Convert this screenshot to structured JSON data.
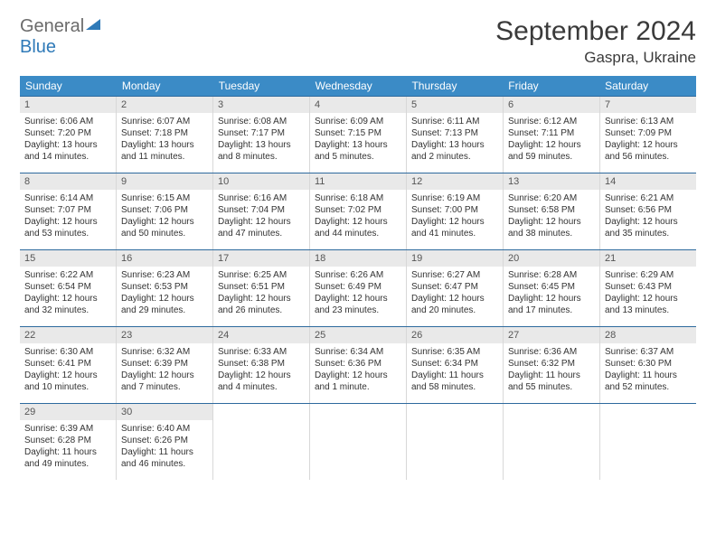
{
  "brand": {
    "part1": "General",
    "part2": "Blue"
  },
  "title": "September 2024",
  "location": "Gaspra, Ukraine",
  "header_bg": "#3b8bc6",
  "row_divider": "#2e6a9e",
  "daynum_bg": "#e9e9e9",
  "dow": [
    "Sunday",
    "Monday",
    "Tuesday",
    "Wednesday",
    "Thursday",
    "Friday",
    "Saturday"
  ],
  "weeks": [
    [
      {
        "n": "1",
        "sr": "Sunrise: 6:06 AM",
        "ss": "Sunset: 7:20 PM",
        "d1": "Daylight: 13 hours",
        "d2": "and 14 minutes."
      },
      {
        "n": "2",
        "sr": "Sunrise: 6:07 AM",
        "ss": "Sunset: 7:18 PM",
        "d1": "Daylight: 13 hours",
        "d2": "and 11 minutes."
      },
      {
        "n": "3",
        "sr": "Sunrise: 6:08 AM",
        "ss": "Sunset: 7:17 PM",
        "d1": "Daylight: 13 hours",
        "d2": "and 8 minutes."
      },
      {
        "n": "4",
        "sr": "Sunrise: 6:09 AM",
        "ss": "Sunset: 7:15 PM",
        "d1": "Daylight: 13 hours",
        "d2": "and 5 minutes."
      },
      {
        "n": "5",
        "sr": "Sunrise: 6:11 AM",
        "ss": "Sunset: 7:13 PM",
        "d1": "Daylight: 13 hours",
        "d2": "and 2 minutes."
      },
      {
        "n": "6",
        "sr": "Sunrise: 6:12 AM",
        "ss": "Sunset: 7:11 PM",
        "d1": "Daylight: 12 hours",
        "d2": "and 59 minutes."
      },
      {
        "n": "7",
        "sr": "Sunrise: 6:13 AM",
        "ss": "Sunset: 7:09 PM",
        "d1": "Daylight: 12 hours",
        "d2": "and 56 minutes."
      }
    ],
    [
      {
        "n": "8",
        "sr": "Sunrise: 6:14 AM",
        "ss": "Sunset: 7:07 PM",
        "d1": "Daylight: 12 hours",
        "d2": "and 53 minutes."
      },
      {
        "n": "9",
        "sr": "Sunrise: 6:15 AM",
        "ss": "Sunset: 7:06 PM",
        "d1": "Daylight: 12 hours",
        "d2": "and 50 minutes."
      },
      {
        "n": "10",
        "sr": "Sunrise: 6:16 AM",
        "ss": "Sunset: 7:04 PM",
        "d1": "Daylight: 12 hours",
        "d2": "and 47 minutes."
      },
      {
        "n": "11",
        "sr": "Sunrise: 6:18 AM",
        "ss": "Sunset: 7:02 PM",
        "d1": "Daylight: 12 hours",
        "d2": "and 44 minutes."
      },
      {
        "n": "12",
        "sr": "Sunrise: 6:19 AM",
        "ss": "Sunset: 7:00 PM",
        "d1": "Daylight: 12 hours",
        "d2": "and 41 minutes."
      },
      {
        "n": "13",
        "sr": "Sunrise: 6:20 AM",
        "ss": "Sunset: 6:58 PM",
        "d1": "Daylight: 12 hours",
        "d2": "and 38 minutes."
      },
      {
        "n": "14",
        "sr": "Sunrise: 6:21 AM",
        "ss": "Sunset: 6:56 PM",
        "d1": "Daylight: 12 hours",
        "d2": "and 35 minutes."
      }
    ],
    [
      {
        "n": "15",
        "sr": "Sunrise: 6:22 AM",
        "ss": "Sunset: 6:54 PM",
        "d1": "Daylight: 12 hours",
        "d2": "and 32 minutes."
      },
      {
        "n": "16",
        "sr": "Sunrise: 6:23 AM",
        "ss": "Sunset: 6:53 PM",
        "d1": "Daylight: 12 hours",
        "d2": "and 29 minutes."
      },
      {
        "n": "17",
        "sr": "Sunrise: 6:25 AM",
        "ss": "Sunset: 6:51 PM",
        "d1": "Daylight: 12 hours",
        "d2": "and 26 minutes."
      },
      {
        "n": "18",
        "sr": "Sunrise: 6:26 AM",
        "ss": "Sunset: 6:49 PM",
        "d1": "Daylight: 12 hours",
        "d2": "and 23 minutes."
      },
      {
        "n": "19",
        "sr": "Sunrise: 6:27 AM",
        "ss": "Sunset: 6:47 PM",
        "d1": "Daylight: 12 hours",
        "d2": "and 20 minutes."
      },
      {
        "n": "20",
        "sr": "Sunrise: 6:28 AM",
        "ss": "Sunset: 6:45 PM",
        "d1": "Daylight: 12 hours",
        "d2": "and 17 minutes."
      },
      {
        "n": "21",
        "sr": "Sunrise: 6:29 AM",
        "ss": "Sunset: 6:43 PM",
        "d1": "Daylight: 12 hours",
        "d2": "and 13 minutes."
      }
    ],
    [
      {
        "n": "22",
        "sr": "Sunrise: 6:30 AM",
        "ss": "Sunset: 6:41 PM",
        "d1": "Daylight: 12 hours",
        "d2": "and 10 minutes."
      },
      {
        "n": "23",
        "sr": "Sunrise: 6:32 AM",
        "ss": "Sunset: 6:39 PM",
        "d1": "Daylight: 12 hours",
        "d2": "and 7 minutes."
      },
      {
        "n": "24",
        "sr": "Sunrise: 6:33 AM",
        "ss": "Sunset: 6:38 PM",
        "d1": "Daylight: 12 hours",
        "d2": "and 4 minutes."
      },
      {
        "n": "25",
        "sr": "Sunrise: 6:34 AM",
        "ss": "Sunset: 6:36 PM",
        "d1": "Daylight: 12 hours",
        "d2": "and 1 minute."
      },
      {
        "n": "26",
        "sr": "Sunrise: 6:35 AM",
        "ss": "Sunset: 6:34 PM",
        "d1": "Daylight: 11 hours",
        "d2": "and 58 minutes."
      },
      {
        "n": "27",
        "sr": "Sunrise: 6:36 AM",
        "ss": "Sunset: 6:32 PM",
        "d1": "Daylight: 11 hours",
        "d2": "and 55 minutes."
      },
      {
        "n": "28",
        "sr": "Sunrise: 6:37 AM",
        "ss": "Sunset: 6:30 PM",
        "d1": "Daylight: 11 hours",
        "d2": "and 52 minutes."
      }
    ],
    [
      {
        "n": "29",
        "sr": "Sunrise: 6:39 AM",
        "ss": "Sunset: 6:28 PM",
        "d1": "Daylight: 11 hours",
        "d2": "and 49 minutes."
      },
      {
        "n": "30",
        "sr": "Sunrise: 6:40 AM",
        "ss": "Sunset: 6:26 PM",
        "d1": "Daylight: 11 hours",
        "d2": "and 46 minutes."
      },
      null,
      null,
      null,
      null,
      null
    ]
  ]
}
